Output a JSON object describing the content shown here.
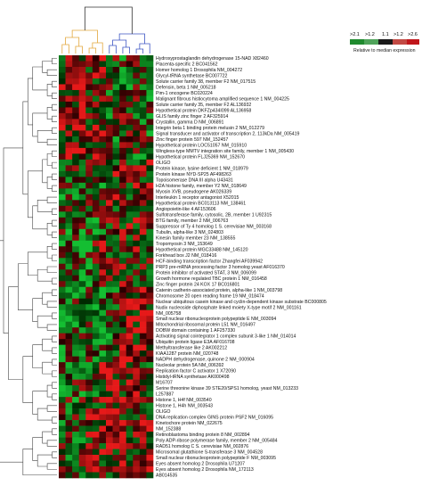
{
  "chart_data": {
    "type": "heatmap",
    "title": "",
    "column_count": 14,
    "legend": {
      "ticks": [
        ">2.1",
        ">1.2",
        "1.1",
        ">1.2",
        ">2.6"
      ],
      "colors": [
        "#1f8a2e",
        "#4fa35a",
        "#1a1a1a",
        "#c24a44",
        "#c0161b"
      ],
      "caption": "Relative to median expression",
      "placement": "top-right"
    },
    "colormap": {
      "low": "#00b43a",
      "mid": "#000000",
      "high": "#e3141c"
    },
    "column_dendrogram_colors": {
      "left_cluster": "#e3a73c",
      "right_cluster": "#3d56c4"
    },
    "rows": [
      "Hydroxyprostaglandin dehydrogenase 15-NAD  X82460",
      "Placenta-specific 2  BC041562",
      "Homer homolog 1 Drosophila  NM_004272",
      "Glycyl-tRNA synthetase  BC007722",
      "Solute carrier family 38, member F2  NM_017515",
      "Defensin, beta 1  NM_005218",
      "Pim-1 oncogene  BC020224",
      "Malignant fibrous histiocytoma amplified sequence 1  NM_004225",
      "Solute carrier family 35, member F2  AL136932",
      "Hypothetical protein DKFZp434I099  AL136958",
      "GLIS family zinc finger 2  AF325914",
      "Crystallin, gamma D  NM_006891",
      "Integrin beta 1 binding protein melusin 2  NM_012279",
      "Signal transducer and activator of transcription 2, 113kDa  NM_005419",
      "Zinc finger protein 597  NM_152457",
      "Hypothetical protein LOC51057  NM_015910",
      "Wingless-type MMTV integration site family, member 1  NM_005430",
      "Hypothetical protein FLJ25369  NM_152670",
      "OLIGO",
      "Protein kinase, lysine deficient 1  NM_018979",
      "Protein kinase NYD-SP25  AF498263",
      "Topoisomerase DNA III alpha  U43431",
      "H2A histone family, member Y2  NM_018649",
      "Myosin XVB, pseudogene  AK026339",
      "Interleukin 1 receptor antagonist  X52015",
      "Hypothetical protein BC013113  NM_138461",
      "Angiopoietin-like 4  AF153606",
      "Sulfotransferase family, cytosolic, 2B, member 1  U92315",
      "BTG family, member 2  NM_006763",
      "Suppressor of Ty 4 homolog 1 S. cerevisiae  NM_003168",
      "Tubulin, alpha-like 3  NM_024803",
      "Kinesin family member 23  NM_138555",
      "Tropomyosin 3  NM_153649",
      "Hypothetical protein MGC33488  NM_145120",
      "Forkhead box J2  NM_018416",
      "HCF-binding transcription factor Zhangfei  AF039942",
      "PRP3 pre-mRNA processing factor 3 homolog yeast  AF016370",
      "Protein inhibitor of activated STAT, 3  NM_006099",
      "Growth hormone regulated TBC protein 1  NM_016458",
      "Zinc finger protein 24 KOX 17  BC016801",
      "Catenin cadherin-associated protein, alpha-like 1  NM_003798",
      "Chromosome 20 open reading frame 19  NM_018474",
      "Nuclear ubiquitous casein kinase and cyclin-dependent kinase substrate  BC000805",
      "Nudix nucleoside diphosphate linked moiety X-type motif 2  NM_001161",
      "NM_005758",
      "Small nuclear ribonucleoprotein polypeptide E  NM_003094",
      "Mitochondrial ribosomal protein L51  NM_016497",
      "DOBW domain containing 1  AF257330",
      "Activating signal cointegrator 1 complex subunit 3-like 1  NM_014014",
      "Ubiquitin protein ligase E3A  AF016708",
      "Methyltransferase like 2  AK002212",
      "KIAA1287 protein  NM_020748",
      "NADPH dehydrogenase, quinone 2  NM_000904",
      "Nucleolar protein 5A  NM_006392",
      "Replication factor C activator 1  X72090",
      "Histidyl-tRNA synthetase  AK000498",
      "M16707",
      "Serine threonine kinase 39 STE20/SPS1 homolog, yeast  NM_013233",
      "L257887",
      "Histone 1, H4f  NM_003540",
      "Histone 1, H4h  NM_003543",
      "OLIGO",
      "DNA replication complex GINS protein PSF2  NM_016095",
      "Kinetochore protein  NM_022675",
      "NM_152388",
      "Retinoblastoma binding protein 8  NM_002894",
      "Poly ADP-ribose polymerase family, member 2  NM_005484",
      "RAD51 homolog C S. cerevisiae  NM_002876",
      "Microsomal glutathione S-transferase 3  NM_004528",
      "Small nuclear ribonucleoprotein polypeptide F  NM_003095",
      "Eyes absent homolog 2 Drosophila  U71207",
      "Eyes absent homolog 2 Drosophila  NM_172113",
      "AB014535"
    ]
  }
}
